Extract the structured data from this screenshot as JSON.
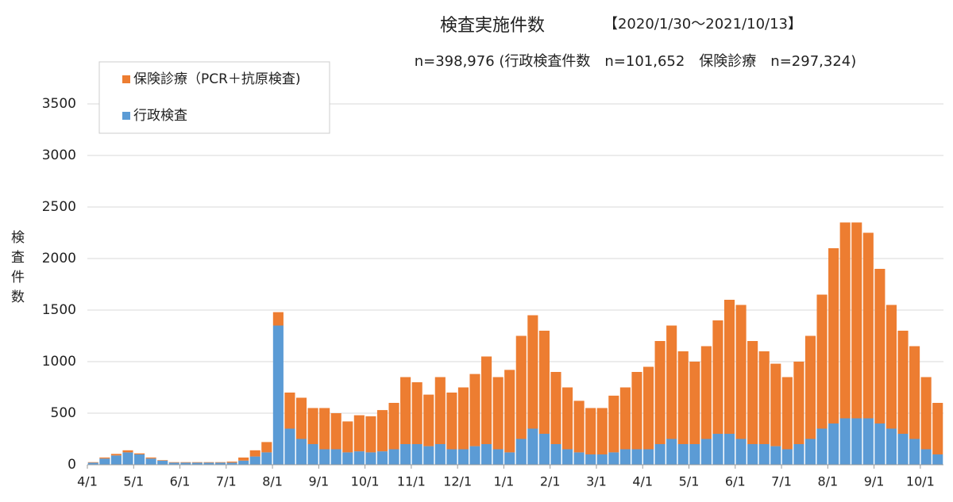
{
  "chart_data": {
    "type": "stacked_bar",
    "title": "検査実施件数",
    "date_range": "【2020/1/30～2021/10/13】",
    "subtitle": "n=398,976 (行政検査件数　n=101,652　保険診療　n=297,324)",
    "y_label": "検査件数",
    "categories": [
      "4/1",
      null,
      null,
      null,
      "5/1",
      null,
      null,
      null,
      "6/1",
      null,
      null,
      null,
      "7/1",
      null,
      null,
      null,
      "8/1",
      null,
      null,
      null,
      "9/1",
      null,
      null,
      null,
      "10/1",
      null,
      null,
      null,
      "11/1",
      null,
      null,
      null,
      "12/1",
      null,
      null,
      null,
      "1/1",
      null,
      null,
      null,
      "2/1",
      null,
      null,
      null,
      "3/1",
      null,
      null,
      null,
      "4/1",
      null,
      null,
      null,
      "5/1",
      null,
      null,
      null,
      "6/1",
      null,
      null,
      null,
      "7/1",
      null,
      null,
      null,
      "8/1",
      null,
      null,
      null,
      "9/1",
      null,
      null,
      null,
      "10/1",
      null
    ],
    "series": [
      {
        "name": "行政検査",
        "color": "#5b9bd5",
        "values": [
          20,
          60,
          90,
          120,
          100,
          60,
          40,
          20,
          20,
          20,
          20,
          20,
          20,
          40,
          80,
          120,
          1350,
          350,
          250,
          200,
          150,
          150,
          120,
          130,
          120,
          130,
          150,
          200,
          200,
          180,
          200,
          150,
          150,
          180,
          200,
          150,
          120,
          250,
          350,
          300,
          200,
          150,
          120,
          100,
          100,
          120,
          150,
          150,
          150,
          200,
          250,
          200,
          200,
          250,
          300,
          300,
          250,
          200,
          200,
          180,
          150,
          200,
          250,
          350,
          400,
          450,
          450,
          450,
          400,
          350,
          300,
          250,
          150,
          100
        ]
      },
      {
        "name": "保険診療（PCR＋抗原検査)",
        "color": "#ed7d31",
        "values": [
          5,
          10,
          15,
          20,
          10,
          10,
          5,
          5,
          5,
          5,
          5,
          5,
          10,
          30,
          60,
          100,
          130,
          350,
          400,
          350,
          400,
          350,
          300,
          350,
          350,
          400,
          450,
          650,
          600,
          500,
          650,
          550,
          600,
          700,
          850,
          700,
          800,
          1000,
          1100,
          1000,
          700,
          600,
          500,
          450,
          450,
          550,
          600,
          750,
          800,
          1000,
          1100,
          900,
          800,
          900,
          1100,
          1300,
          1300,
          1000,
          900,
          800,
          700,
          800,
          1000,
          1300,
          1700,
          1900,
          1900,
          1800,
          1500,
          1200,
          1000,
          900,
          700,
          500
        ]
      }
    ],
    "ylim": [
      0,
      3500
    ],
    "yticks": [
      0,
      500,
      1000,
      1500,
      2000,
      2500,
      3000,
      3500
    ],
    "grid": true,
    "legend": "top-left"
  }
}
